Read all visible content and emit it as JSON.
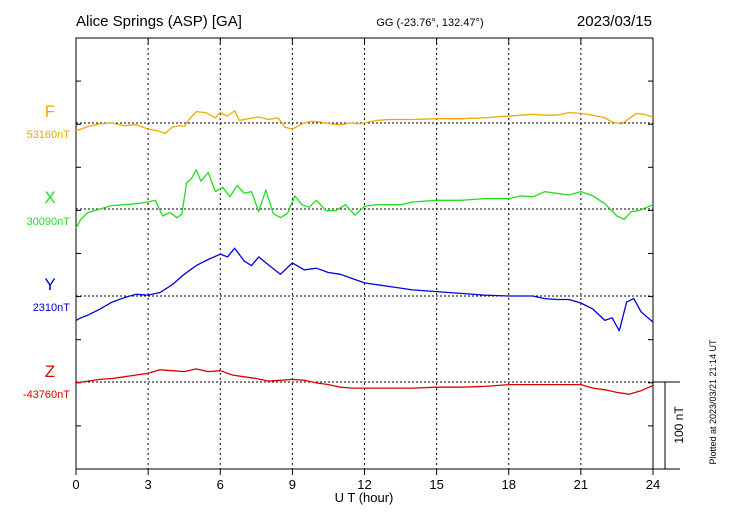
{
  "header": {
    "station": "Alice Springs (ASP)  [GA]",
    "coords": "GG (-23.76°, 132.47°)",
    "date": "2023/03/15"
  },
  "footer_note": "Plotted at 2023/03/21 21:14 UT",
  "chart_data": {
    "type": "line",
    "xlabel": "U T (hour)",
    "xlim": [
      0,
      24
    ],
    "xticks": [
      "0",
      "3",
      "6",
      "9",
      "12",
      "15",
      "18",
      "21",
      "24"
    ],
    "grid": true,
    "scale_bar": {
      "label": "100 nT",
      "value_nT": 100
    },
    "series": [
      {
        "name": "F",
        "baseline_label": "53160nT",
        "baseline_nT": 53160,
        "color": "#f2a900",
        "x": [
          0,
          0.2,
          0.5,
          1,
          1.5,
          2,
          2.5,
          3,
          3.4,
          3.7,
          4,
          4.3,
          4.5,
          4.7,
          5,
          5.4,
          5.8,
          6,
          6.3,
          6.6,
          6.8,
          7.2,
          7.6,
          8,
          8.4,
          8.7,
          9,
          9.4,
          9.8,
          10.2,
          10.6,
          11,
          11.4,
          11.8,
          12,
          12.5,
          13,
          14,
          15,
          16,
          17,
          18,
          18.5,
          19,
          19.5,
          20,
          20.5,
          21,
          21.5,
          22,
          22.3,
          22.7,
          23,
          23.3,
          23.6,
          24
        ],
        "y": [
          -9,
          -7,
          -4,
          -1,
          0,
          -3,
          -2,
          -7,
          -9,
          -12,
          -5,
          -3,
          -4,
          4,
          13,
          12,
          6,
          12,
          8,
          14,
          3,
          5,
          7,
          4,
          6,
          -5,
          -7,
          -1,
          2,
          1,
          -1,
          -2,
          0,
          -1,
          0,
          3,
          4,
          4,
          5,
          5,
          6,
          8,
          9,
          10,
          9,
          9,
          12,
          11,
          9,
          6,
          1,
          -1,
          5,
          11,
          10,
          7
        ]
      },
      {
        "name": "X",
        "baseline_label": "30090nT",
        "baseline_nT": 30090,
        "color": "#22dd22",
        "x": [
          0,
          0.2,
          0.5,
          1,
          1.5,
          2,
          2.5,
          3,
          3.3,
          3.6,
          3.9,
          4.2,
          4.4,
          4.6,
          4.8,
          5,
          5.2,
          5.5,
          5.8,
          6.1,
          6.4,
          6.7,
          7,
          7.3,
          7.6,
          7.9,
          8.2,
          8.5,
          8.8,
          9.1,
          9.4,
          9.7,
          10,
          10.4,
          10.8,
          11.2,
          11.6,
          12,
          12.5,
          13,
          13.5,
          14,
          15,
          16,
          17,
          18,
          18.5,
          19,
          19.5,
          20,
          20.5,
          21,
          21.5,
          22,
          22.5,
          22.8,
          23.1,
          23.4,
          24
        ],
        "y": [
          -22,
          -12,
          -4,
          0,
          4,
          5,
          6,
          8,
          10,
          -8,
          -4,
          -10,
          -6,
          30,
          35,
          45,
          32,
          42,
          20,
          25,
          14,
          27,
          18,
          20,
          -3,
          22,
          -5,
          -10,
          -5,
          15,
          5,
          2,
          10,
          -2,
          -2,
          5,
          -7,
          3,
          5,
          5,
          5,
          8,
          10,
          10,
          12,
          12,
          15,
          14,
          20,
          18,
          16,
          20,
          15,
          6,
          -8,
          -12,
          -3,
          -2,
          5
        ]
      },
      {
        "name": "Y",
        "baseline_label": "2310nT",
        "baseline_nT": 2310,
        "color": "#0000dd",
        "x": [
          0,
          0.2,
          0.5,
          1,
          1.5,
          2,
          2.5,
          3,
          3.5,
          4,
          4.5,
          5,
          5.5,
          6,
          6.3,
          6.6,
          7,
          7.3,
          7.6,
          8,
          8.5,
          9,
          9.5,
          10,
          10.5,
          11,
          11.5,
          12,
          13,
          14,
          15,
          16,
          17,
          18,
          18.5,
          19,
          19.5,
          20,
          20.5,
          21,
          21.5,
          22,
          22.3,
          22.6,
          22.9,
          23.2,
          23.5,
          24
        ],
        "y": [
          -28,
          -25,
          -22,
          -15,
          -7,
          -2,
          2,
          1,
          4,
          13,
          25,
          35,
          42,
          48,
          45,
          55,
          40,
          35,
          45,
          36,
          25,
          38,
          30,
          32,
          27,
          25,
          20,
          15,
          11,
          7,
          5,
          3,
          1,
          0,
          0,
          0,
          -3,
          -4,
          -4,
          -8,
          -15,
          -28,
          -25,
          -40,
          -7,
          -3,
          -18,
          -30
        ]
      },
      {
        "name": "Z",
        "baseline_label": "-43760nT",
        "baseline_nT": -43760,
        "color": "#dd0000",
        "x": [
          0,
          0.5,
          1,
          1.5,
          2,
          2.5,
          3,
          3.5,
          4,
          4.5,
          5,
          5.5,
          6,
          6.5,
          7,
          7.5,
          8,
          8.5,
          9,
          9.5,
          10,
          10.5,
          11,
          11.5,
          12,
          13,
          14,
          15,
          16,
          17,
          18,
          19,
          20,
          21,
          21.5,
          22,
          22.5,
          23,
          23.5,
          24
        ],
        "y": [
          -1,
          1,
          3,
          4,
          6,
          8,
          10,
          14,
          13,
          12,
          15,
          12,
          13,
          8,
          6,
          4,
          1,
          2,
          3,
          2,
          -1,
          -3,
          -6,
          -7,
          -7,
          -7,
          -7,
          -6,
          -6,
          -5,
          -3,
          -3,
          -3,
          -3,
          -7,
          -9,
          -12,
          -14,
          -10,
          -4
        ]
      }
    ]
  }
}
